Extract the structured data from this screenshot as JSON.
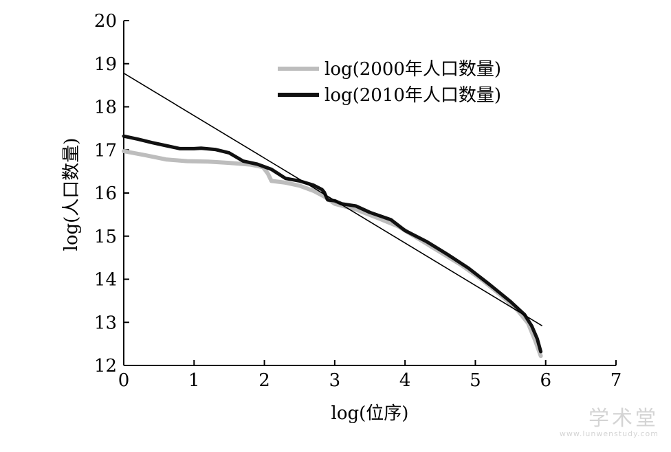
{
  "chart_data": {
    "type": "line",
    "title": "",
    "xlabel": "log(位序)",
    "ylabel": "log(人口数量)",
    "xlim": [
      0,
      7
    ],
    "ylim": [
      12,
      20
    ],
    "xticks": [
      0,
      1,
      2,
      3,
      4,
      5,
      6,
      7
    ],
    "yticks": [
      12,
      13,
      14,
      15,
      16,
      17,
      18,
      19,
      20
    ],
    "grid": false,
    "legend": "top-right",
    "series": [
      {
        "name": "log(2000年人口数量)",
        "color": "#bdbdbd",
        "x": [
          0,
          0.3,
          0.6,
          0.9,
          1.2,
          1.5,
          1.8,
          1.98,
          2.05,
          2.1,
          2.3,
          2.5,
          2.7,
          2.85,
          3.0,
          3.3,
          3.6,
          3.9,
          4.2,
          4.5,
          4.8,
          5.1,
          5.4,
          5.6,
          5.75,
          5.85,
          5.93
        ],
        "values": [
          16.97,
          16.88,
          16.78,
          16.74,
          16.73,
          16.7,
          16.66,
          16.6,
          16.45,
          16.28,
          16.24,
          16.17,
          16.05,
          15.92,
          15.75,
          15.62,
          15.43,
          15.23,
          14.93,
          14.63,
          14.33,
          13.98,
          13.58,
          13.28,
          12.98,
          12.58,
          12.22
        ]
      },
      {
        "name": "log(2010年人口数量)",
        "color": "#111111",
        "x": [
          0,
          0.2,
          0.4,
          0.6,
          0.8,
          1.0,
          1.1,
          1.3,
          1.5,
          1.7,
          1.9,
          2.1,
          2.3,
          2.5,
          2.7,
          2.82,
          2.85,
          2.9,
          3.0,
          3.1,
          3.3,
          3.5,
          3.8,
          4.0,
          4.3,
          4.6,
          4.9,
          5.2,
          5.5,
          5.7,
          5.8,
          5.88,
          5.93
        ],
        "values": [
          17.32,
          17.25,
          17.17,
          17.1,
          17.03,
          17.03,
          17.04,
          17.01,
          16.93,
          16.74,
          16.67,
          16.55,
          16.34,
          16.28,
          16.18,
          16.08,
          16.02,
          15.84,
          15.82,
          15.75,
          15.7,
          15.55,
          15.38,
          15.13,
          14.88,
          14.58,
          14.26,
          13.88,
          13.48,
          13.18,
          12.92,
          12.62,
          12.32
        ]
      }
    ],
    "trendline": {
      "x": [
        0,
        5.95
      ],
      "values": [
        18.78,
        12.92
      ],
      "color": "#000000"
    }
  },
  "watermark": {
    "logo": "学术堂",
    "url": "www.lunwenstudy.com"
  }
}
